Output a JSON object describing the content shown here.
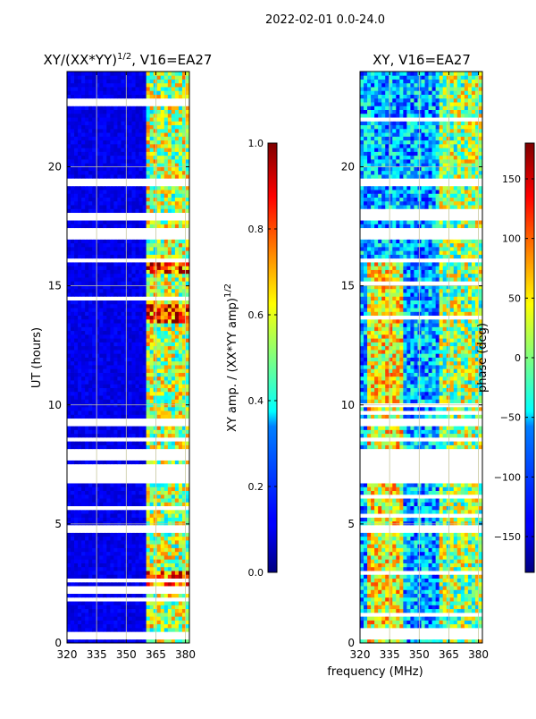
{
  "figure": {
    "suptitle": "2022-02-01 0.0-24.0",
    "xlabel": "frequency (MHz)"
  },
  "chart_data": [
    {
      "type": "heatmap",
      "title_text": "XY/(XX*YY)",
      "title_exp": "1/2",
      "title_suffix": ", V16=EA27",
      "xlabel": "frequency (MHz)",
      "ylabel": "UT (hours)",
      "xlim": [
        320,
        382
      ],
      "ylim": [
        0,
        24
      ],
      "xticks": [
        320,
        335,
        350,
        365,
        380
      ],
      "yticks": [
        0,
        5,
        10,
        15,
        20
      ],
      "colormap": "jet",
      "grid": true,
      "colorbar": {
        "label_text": "XY amp. / (XX*YY amp)",
        "label_exp": "1/2",
        "range": [
          0.0,
          1.0
        ],
        "ticks": [
          0.0,
          0.2,
          0.4,
          0.6,
          0.8,
          1.0
        ],
        "tick_labels": [
          "0.0",
          "0.2",
          "0.4",
          "0.6",
          "0.8",
          "1.0"
        ]
      },
      "flagged_time_ranges": [
        [
          0.2,
          0.5
        ],
        [
          4.7,
          4.9
        ],
        [
          6.8,
          7.5
        ],
        [
          7.9,
          8.2
        ],
        [
          8.4,
          8.7
        ],
        [
          9.2,
          9.5
        ],
        [
          16.0,
          16.2
        ],
        [
          17.0,
          17.5
        ],
        [
          17.8,
          18.1
        ],
        [
          19.2,
          19.5
        ]
      ],
      "bright_band_freq_range": [
        360,
        382
      ],
      "bright_band_mean": 0.55,
      "background_level": 0.07
    },
    {
      "type": "heatmap",
      "title_text": "XY, V16=EA27",
      "xlabel": "frequency (MHz)",
      "xlim": [
        320,
        382
      ],
      "ylim": [
        0,
        24
      ],
      "xticks": [
        320,
        335,
        350,
        365,
        380
      ],
      "yticks": [
        0,
        5,
        10,
        15,
        20
      ],
      "colormap": "jet",
      "grid": true,
      "colorbar": {
        "label_text": "phase (deg)",
        "range": [
          -180,
          180
        ],
        "ticks": [
          -150,
          -100,
          -50,
          0,
          50,
          100,
          150
        ],
        "tick_labels": [
          "−150",
          "−100",
          "−50",
          "0",
          "50",
          "100",
          "150"
        ]
      },
      "flagged_time_ranges": [
        [
          0.2,
          0.5
        ],
        [
          4.7,
          4.9
        ],
        [
          6.8,
          7.5
        ],
        [
          7.9,
          8.2
        ],
        [
          8.4,
          8.7
        ],
        [
          9.2,
          9.5
        ],
        [
          16.0,
          16.2
        ],
        [
          17.0,
          17.5
        ],
        [
          17.8,
          18.1
        ],
        [
          19.2,
          19.5
        ]
      ],
      "hot_region_freq_range": [
        324,
        342
      ],
      "hot_region_time_range": [
        0,
        16
      ]
    }
  ]
}
